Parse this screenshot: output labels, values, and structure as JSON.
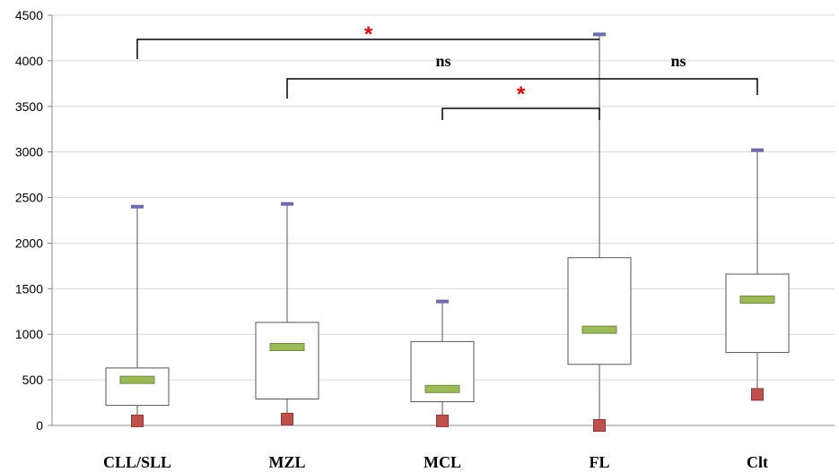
{
  "chart_data": {
    "type": "box",
    "ylim": [
      0,
      4500
    ],
    "yticks": [
      0,
      500,
      1000,
      1500,
      2000,
      2500,
      3000,
      3500,
      4000,
      4500
    ],
    "grid": true,
    "categories": [
      "CLL/SLL",
      "MZL",
      "MCL",
      "FL",
      "Clt"
    ],
    "boxes": [
      {
        "category": "CLL/SLL",
        "min": 50,
        "q1": 220,
        "median": 500,
        "q3": 630,
        "max": 2400
      },
      {
        "category": "MZL",
        "min": 70,
        "q1": 290,
        "median": 860,
        "q3": 1130,
        "max": 2430
      },
      {
        "category": "MCL",
        "min": 50,
        "q1": 260,
        "median": 400,
        "q3": 920,
        "max": 1360
      },
      {
        "category": "FL",
        "min": 0,
        "q1": 670,
        "median": 1050,
        "q3": 1840,
        "max": 4290
      },
      {
        "category": "Clt",
        "min": 340,
        "q1": 800,
        "median": 1380,
        "q3": 1660,
        "max": 3020
      }
    ],
    "comparisons": [
      {
        "from": "CLL/SLL",
        "to": "FL",
        "label": "*"
      },
      {
        "from": "MZL",
        "to": "FL",
        "label": "ns"
      },
      {
        "from": "FL",
        "to": "Clt",
        "label": "ns"
      },
      {
        "from": "MCL",
        "to": "FL",
        "label": "*"
      }
    ],
    "colors": {
      "median": "#9bbb59",
      "median_edge": "#71893f",
      "min_marker": "#c0504d",
      "min_marker_edge": "#8c3836",
      "max_marker": "#6b6bb0",
      "star": "#e00000",
      "grid": "#d9d9d9"
    }
  }
}
